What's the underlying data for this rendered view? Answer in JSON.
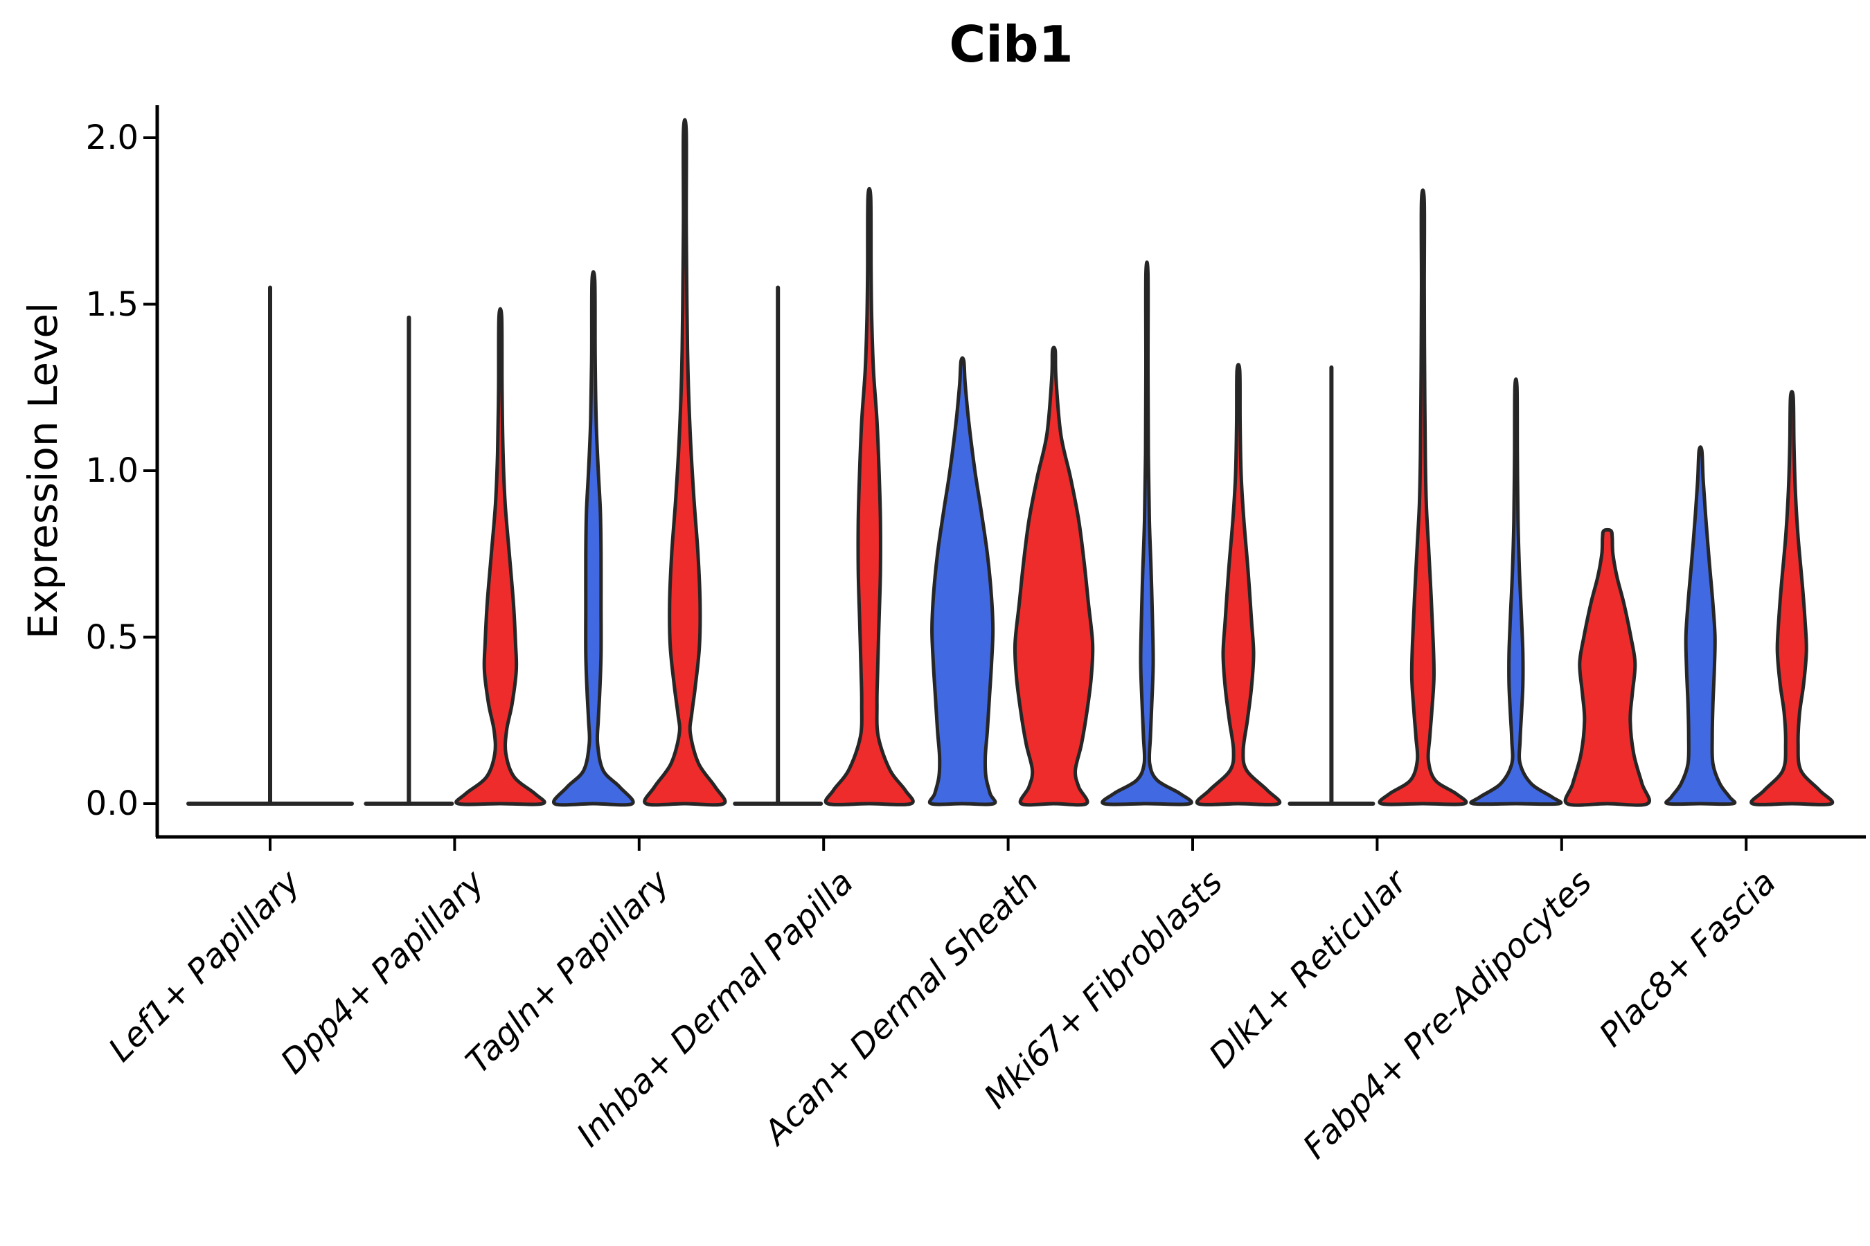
{
  "title": "Cib1",
  "y_axis": {
    "label": "Expression Level",
    "tick_labels": [
      "0.0",
      "0.5",
      "1.0",
      "1.5",
      "2.0"
    ],
    "tick_values": [
      0.0,
      0.5,
      1.0,
      1.5,
      2.0
    ]
  },
  "x_axis": {
    "categories": [
      "Lef1+ Papillary",
      "Dpp4+ Papillary",
      "Tagln+ Papillary",
      "Inhba+ Dermal Papilla",
      "Acan+ Dermal Sheath",
      "Mki67+ Fibroblasts",
      "Dlk1+ Reticular",
      "Fabp4+ Pre-Adipocytes",
      "Plac8+ Fascia"
    ]
  },
  "colors": {
    "group_blue": "#4169E1",
    "group_red": "#EE2C2C",
    "outline": "#262626",
    "axis": "#000000"
  },
  "chart_data": {
    "type": "violin",
    "title": "Cib1",
    "ylabel": "Expression Level",
    "ylim": [
      0,
      2.05
    ],
    "yticks": [
      0.0,
      0.5,
      1.0,
      1.5,
      2.0
    ],
    "grid": false,
    "legend": "none",
    "categories": [
      "Lef1+ Papillary",
      "Dpp4+ Papillary",
      "Tagln+ Papillary",
      "Inhba+ Dermal Papilla",
      "Acan+ Dermal Sheath",
      "Mki67+ Fibroblasts",
      "Dlk1+ Reticular",
      "Fabp4+ Pre-Adipocytes",
      "Plac8+ Fascia"
    ],
    "note": "Each category shows a blue (left) and red (right) violin of Cib1 expression density; profile = [expression_value, half_width_px]. Flat violins collapsed to a baseline with a thin tail spike.",
    "violins": [
      {
        "category": "Lef1+ Papillary",
        "group": "single",
        "color": "none",
        "flat": true,
        "max": 1.55,
        "baseline_halfwidth": 118
      },
      {
        "category": "Dpp4+ Papillary",
        "group": "blue",
        "color": "#4169E1",
        "flat": true,
        "max": 1.46,
        "baseline_halfwidth": 62
      },
      {
        "category": "Dpp4+ Papillary",
        "group": "red",
        "color": "#EE2C2C",
        "flat": false,
        "max": 1.46,
        "profile": [
          [
            1.46,
            2
          ],
          [
            1.25,
            2.5
          ],
          [
            1.05,
            4
          ],
          [
            0.9,
            7
          ],
          [
            0.75,
            13
          ],
          [
            0.6,
            19
          ],
          [
            0.48,
            22
          ],
          [
            0.4,
            23
          ],
          [
            0.3,
            17
          ],
          [
            0.22,
            9
          ],
          [
            0.15,
            8
          ],
          [
            0.08,
            20
          ],
          [
            0.03,
            50
          ],
          [
            0,
            61
          ]
        ]
      },
      {
        "category": "Tagln+ Papillary",
        "group": "blue",
        "color": "#4169E1",
        "flat": false,
        "max": 1.57,
        "profile": [
          [
            1.57,
            2
          ],
          [
            1.35,
            2.5
          ],
          [
            1.15,
            4
          ],
          [
            1.0,
            7
          ],
          [
            0.88,
            10
          ],
          [
            0.75,
            11
          ],
          [
            0.6,
            11
          ],
          [
            0.45,
            11
          ],
          [
            0.33,
            9
          ],
          [
            0.25,
            7
          ],
          [
            0.18,
            6
          ],
          [
            0.1,
            14
          ],
          [
            0.05,
            38
          ],
          [
            0,
            56
          ]
        ]
      },
      {
        "category": "Tagln+ Papillary",
        "group": "red",
        "color": "#EE2C2C",
        "flat": false,
        "max": 2.02,
        "profile": [
          [
            2.02,
            2
          ],
          [
            1.75,
            2
          ],
          [
            1.5,
            3
          ],
          [
            1.3,
            4.5
          ],
          [
            1.1,
            8
          ],
          [
            0.92,
            13
          ],
          [
            0.75,
            19
          ],
          [
            0.6,
            22
          ],
          [
            0.47,
            21
          ],
          [
            0.35,
            15
          ],
          [
            0.27,
            10
          ],
          [
            0.21,
            8
          ],
          [
            0.12,
            20
          ],
          [
            0.05,
            44
          ],
          [
            0,
            56
          ]
        ]
      },
      {
        "category": "Inhba+ Dermal Papilla",
        "group": "blue",
        "color": "#4169E1",
        "flat": true,
        "max": 1.55,
        "baseline_halfwidth": 62
      },
      {
        "category": "Inhba+ Dermal Papilla",
        "group": "red",
        "color": "#EE2C2C",
        "flat": false,
        "max": 1.82,
        "profile": [
          [
            1.82,
            2
          ],
          [
            1.6,
            2.5
          ],
          [
            1.45,
            3.5
          ],
          [
            1.3,
            6
          ],
          [
            1.15,
            11
          ],
          [
            1.0,
            14
          ],
          [
            0.85,
            16
          ],
          [
            0.7,
            16
          ],
          [
            0.55,
            14
          ],
          [
            0.4,
            12
          ],
          [
            0.3,
            11
          ],
          [
            0.2,
            13
          ],
          [
            0.1,
            30
          ],
          [
            0.04,
            52
          ],
          [
            0,
            60
          ]
        ]
      },
      {
        "category": "Acan+ Dermal Sheath",
        "group": "blue",
        "color": "#4169E1",
        "flat": false,
        "max": 1.33,
        "profile": [
          [
            1.33,
            2
          ],
          [
            1.26,
            4
          ],
          [
            1.15,
            9
          ],
          [
            1.0,
            18
          ],
          [
            0.88,
            27
          ],
          [
            0.75,
            36
          ],
          [
            0.62,
            42
          ],
          [
            0.52,
            44
          ],
          [
            0.42,
            42
          ],
          [
            0.32,
            39
          ],
          [
            0.22,
            36
          ],
          [
            0.14,
            33
          ],
          [
            0.08,
            34
          ],
          [
            0.03,
            40
          ],
          [
            0,
            45
          ]
        ]
      },
      {
        "category": "Acan+ Dermal Sheath",
        "group": "red",
        "color": "#EE2C2C",
        "flat": false,
        "max": 1.36,
        "profile": [
          [
            1.36,
            2
          ],
          [
            1.28,
            3
          ],
          [
            1.11,
            10
          ],
          [
            0.98,
            24
          ],
          [
            0.85,
            36
          ],
          [
            0.72,
            44
          ],
          [
            0.6,
            50
          ],
          [
            0.48,
            56
          ],
          [
            0.38,
            54
          ],
          [
            0.28,
            48
          ],
          [
            0.18,
            40
          ],
          [
            0.1,
            31
          ],
          [
            0.05,
            36
          ],
          [
            0,
            47
          ]
        ]
      },
      {
        "category": "Mki67+ Fibroblasts",
        "group": "blue",
        "color": "#4169E1",
        "flat": false,
        "max": 1.59,
        "profile": [
          [
            1.59,
            1.5
          ],
          [
            1.3,
            1.5
          ],
          [
            1.05,
            2
          ],
          [
            0.85,
            3.5
          ],
          [
            0.7,
            6
          ],
          [
            0.55,
            8
          ],
          [
            0.42,
            9
          ],
          [
            0.3,
            7
          ],
          [
            0.2,
            5
          ],
          [
            0.12,
            4
          ],
          [
            0.07,
            15
          ],
          [
            0.03,
            48
          ],
          [
            0,
            62
          ]
        ]
      },
      {
        "category": "Mki67+ Fibroblasts",
        "group": "red",
        "color": "#EE2C2C",
        "flat": false,
        "max": 1.3,
        "profile": [
          [
            1.3,
            2
          ],
          [
            1.15,
            2.5
          ],
          [
            0.99,
            4
          ],
          [
            0.85,
            8
          ],
          [
            0.7,
            14
          ],
          [
            0.55,
            19
          ],
          [
            0.45,
            22
          ],
          [
            0.35,
            19
          ],
          [
            0.25,
            13
          ],
          [
            0.16,
            7
          ],
          [
            0.1,
            12
          ],
          [
            0.04,
            42
          ],
          [
            0,
            58
          ]
        ]
      },
      {
        "category": "Dlk1+ Reticular",
        "group": "blue",
        "color": "#4169E1",
        "flat": true,
        "max": 1.31,
        "baseline_halfwidth": 60
      },
      {
        "category": "Dlk1+ Reticular",
        "group": "red",
        "color": "#EE2C2C",
        "flat": false,
        "max": 1.81,
        "profile": [
          [
            1.81,
            2
          ],
          [
            1.55,
            2
          ],
          [
            1.3,
            2.5
          ],
          [
            1.05,
            3.5
          ],
          [
            0.9,
            5
          ],
          [
            0.78,
            8
          ],
          [
            0.62,
            12
          ],
          [
            0.48,
            15
          ],
          [
            0.38,
            16
          ],
          [
            0.28,
            13
          ],
          [
            0.2,
            10
          ],
          [
            0.13,
            8
          ],
          [
            0.07,
            18
          ],
          [
            0.03,
            48
          ],
          [
            0,
            60
          ]
        ]
      },
      {
        "category": "Fabp4+ Pre-Adipocytes",
        "group": "blue",
        "color": "#4169E1",
        "flat": false,
        "max": 1.25,
        "profile": [
          [
            1.25,
            1.5
          ],
          [
            1.05,
            2
          ],
          [
            0.85,
            3
          ],
          [
            0.7,
            5
          ],
          [
            0.56,
            8
          ],
          [
            0.45,
            10
          ],
          [
            0.36,
            10
          ],
          [
            0.27,
            8
          ],
          [
            0.19,
            6
          ],
          [
            0.12,
            6
          ],
          [
            0.06,
            22
          ],
          [
            0.02,
            52
          ],
          [
            0,
            62
          ]
        ]
      },
      {
        "category": "Fabp4+ Pre-Adipocytes",
        "group": "red",
        "color": "#EE2C2C",
        "flat": false,
        "max": 0.82,
        "profile": [
          [
            0.82,
            5
          ],
          [
            0.8,
            7
          ],
          [
            0.75,
            8
          ],
          [
            0.68,
            14
          ],
          [
            0.6,
            24
          ],
          [
            0.5,
            34
          ],
          [
            0.42,
            40
          ],
          [
            0.33,
            36
          ],
          [
            0.25,
            33
          ],
          [
            0.15,
            38
          ],
          [
            0.06,
            50
          ],
          [
            0,
            58
          ]
        ]
      },
      {
        "category": "Plac8+ Fascia",
        "group": "blue",
        "color": "#4169E1",
        "flat": false,
        "max": 1.06,
        "profile": [
          [
            1.06,
            2
          ],
          [
            0.97,
            4
          ],
          [
            0.85,
            8
          ],
          [
            0.72,
            13
          ],
          [
            0.6,
            18
          ],
          [
            0.5,
            21
          ],
          [
            0.4,
            20
          ],
          [
            0.3,
            18
          ],
          [
            0.2,
            17
          ],
          [
            0.12,
            18
          ],
          [
            0.06,
            28
          ],
          [
            0.02,
            42
          ],
          [
            0,
            47
          ]
        ]
      },
      {
        "category": "Plac8+ Fascia",
        "group": "red",
        "color": "#EE2C2C",
        "flat": false,
        "max": 1.22,
        "profile": [
          [
            1.22,
            2
          ],
          [
            1.08,
            3
          ],
          [
            0.94,
            5
          ],
          [
            0.8,
            9
          ],
          [
            0.66,
            15
          ],
          [
            0.55,
            19
          ],
          [
            0.46,
            21
          ],
          [
            0.36,
            17
          ],
          [
            0.27,
            11
          ],
          [
            0.18,
            9
          ],
          [
            0.1,
            13
          ],
          [
            0.04,
            40
          ],
          [
            0,
            57
          ]
        ]
      }
    ]
  }
}
